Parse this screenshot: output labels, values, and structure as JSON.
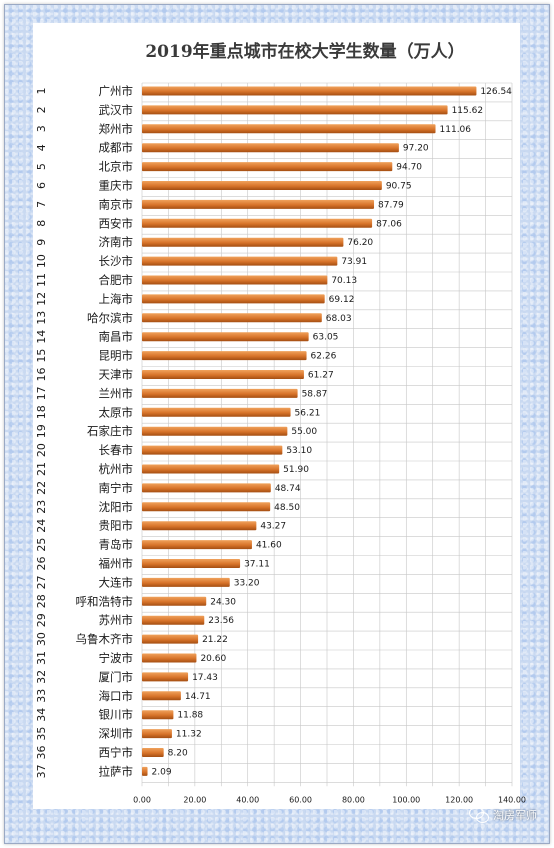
{
  "chart_data": {
    "type": "bar",
    "orientation": "horizontal",
    "title": "2019年重点城市在校大学生数量（万人）",
    "xlabel": "",
    "ylabel": "",
    "xlim": [
      0,
      140
    ],
    "x_ticks": [
      "0.00",
      "20.00",
      "40.00",
      "60.00",
      "80.00",
      "100.00",
      "120.00",
      "140.00"
    ],
    "grid": true,
    "bar_color": "#d8742a",
    "bar_color_light": "#f0a25c",
    "bar_color_dark": "#a44e12",
    "categories": [
      "广州市",
      "武汉市",
      "郑州市",
      "成都市",
      "北京市",
      "重庆市",
      "南京市",
      "西安市",
      "济南市",
      "长沙市",
      "合肥市",
      "上海市",
      "哈尔滨市",
      "南昌市",
      "昆明市",
      "天津市",
      "兰州市",
      "太原市",
      "石家庄市",
      "长春市",
      "杭州市",
      "南宁市",
      "沈阳市",
      "贵阳市",
      "青岛市",
      "福州市",
      "大连市",
      "呼和浩特市",
      "苏州市",
      "乌鲁木齐市",
      "宁波市",
      "厦门市",
      "海口市",
      "银川市",
      "深圳市",
      "西宁市",
      "拉萨市"
    ],
    "ranks": [
      "1",
      "2",
      "3",
      "4",
      "5",
      "6",
      "7",
      "8",
      "9",
      "10",
      "11",
      "12",
      "13",
      "14",
      "15",
      "16",
      "17",
      "18",
      "19",
      "20",
      "21",
      "22",
      "23",
      "24",
      "25",
      "26",
      "27",
      "28",
      "29",
      "30",
      "31",
      "32",
      "33",
      "34",
      "35",
      "36",
      "37"
    ],
    "values": [
      126.54,
      115.62,
      111.06,
      97.2,
      94.7,
      90.75,
      87.79,
      87.06,
      76.2,
      73.91,
      70.13,
      69.12,
      68.03,
      63.05,
      62.26,
      61.27,
      58.87,
      56.21,
      55.0,
      53.1,
      51.9,
      48.74,
      48.5,
      43.27,
      41.6,
      37.11,
      33.2,
      24.3,
      23.56,
      21.22,
      20.6,
      17.43,
      14.71,
      11.88,
      11.32,
      8.2,
      2.09
    ]
  },
  "watermark": {
    "icon": "wechat-icon",
    "text": "淘房军师"
  }
}
